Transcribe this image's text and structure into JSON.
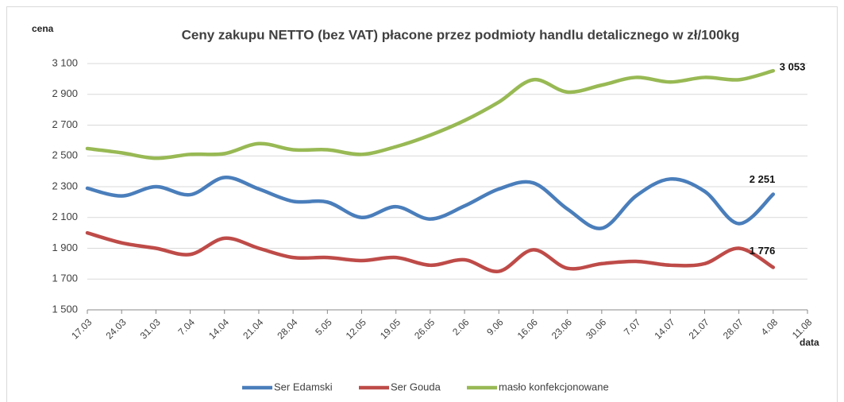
{
  "chart_data": {
    "type": "line",
    "title": "Ceny zakupu NETTO (bez VAT) płacone przez podmioty handlu detalicznego w zł/100kg",
    "y_label": "cena",
    "x_label": "data",
    "categories": [
      "17.03",
      "24.03",
      "31.03",
      "7.04",
      "14.04",
      "21.04",
      "28.04",
      "5.05",
      "12.05",
      "19.05",
      "26.05",
      "2.06",
      "9.06",
      "16.06",
      "23.06",
      "30.06",
      "7.07",
      "14.07",
      "21.07",
      "28.07",
      "4.08",
      "11.08"
    ],
    "ylim": [
      1500,
      3100
    ],
    "yticks": [
      {
        "value": 1500,
        "label": "1 500"
      },
      {
        "value": 1700,
        "label": "1 700"
      },
      {
        "value": 1900,
        "label": "1 900"
      },
      {
        "value": 2100,
        "label": "2 100"
      },
      {
        "value": 2300,
        "label": "2 300"
      },
      {
        "value": 2500,
        "label": "2 500"
      },
      {
        "value": 2700,
        "label": "2 700"
      },
      {
        "value": 2900,
        "label": "2 900"
      },
      {
        "value": 3100,
        "label": "3 100"
      }
    ],
    "grid": true,
    "legend": "bottom",
    "smooth": true,
    "series": [
      {
        "name": "Ser Edamski",
        "color": "#4a7ebb",
        "values": [
          2290,
          2240,
          2300,
          2248,
          2360,
          2285,
          2205,
          2200,
          2100,
          2170,
          2090,
          2175,
          2285,
          2325,
          2155,
          2030,
          2240,
          2350,
          2270,
          2060,
          2251,
          null
        ],
        "value_labels": [
          null,
          null,
          null,
          null,
          null,
          null,
          null,
          null,
          null,
          null,
          null,
          null,
          null,
          null,
          null,
          null,
          null,
          null,
          null,
          null,
          "2 251",
          null
        ]
      },
      {
        "name": "Ser Gouda",
        "color": "#be4b48",
        "values": [
          2000,
          1935,
          1900,
          1860,
          1965,
          1900,
          1840,
          1840,
          1820,
          1840,
          1790,
          1825,
          1750,
          1890,
          1770,
          1800,
          1815,
          1790,
          1800,
          1900,
          1776,
          null
        ],
        "value_labels": [
          null,
          null,
          null,
          null,
          null,
          null,
          null,
          null,
          null,
          null,
          null,
          null,
          null,
          null,
          null,
          null,
          null,
          null,
          null,
          null,
          "1 776",
          null
        ]
      },
      {
        "name": "masło konfekcjonowane",
        "color": "#98b954",
        "values": [
          2548,
          2520,
          2485,
          2510,
          2515,
          2580,
          2540,
          2540,
          2510,
          2560,
          2635,
          2730,
          2850,
          2995,
          2915,
          2960,
          3010,
          2980,
          3010,
          2995,
          3053,
          null
        ],
        "value_labels": [
          null,
          null,
          null,
          null,
          null,
          null,
          null,
          null,
          null,
          null,
          null,
          null,
          null,
          null,
          null,
          null,
          null,
          null,
          null,
          null,
          "3 053",
          null
        ]
      }
    ]
  }
}
